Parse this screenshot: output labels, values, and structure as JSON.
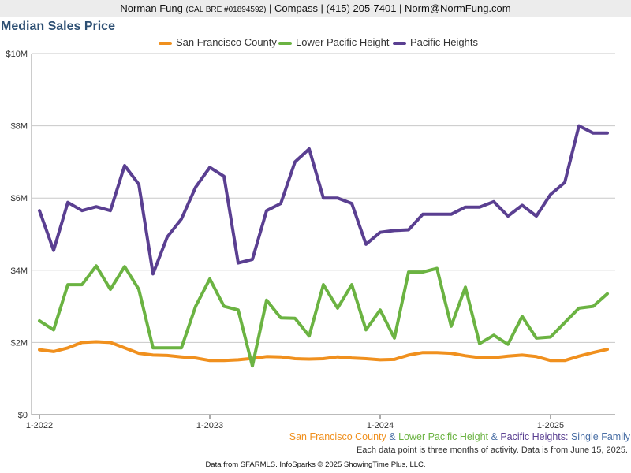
{
  "header": {
    "agent_name": "Norman Fung",
    "license": "(CAL BRE #01894592)",
    "rest": "| Compass | (415) 205-7401 | Norm@NormFung.com"
  },
  "colors": {
    "sf": "#f0901e",
    "lph": "#6bb342",
    "ph": "#5a3f91",
    "title": "#2d4f73",
    "subtitle_blue": "#4a6fa5"
  },
  "chart_data": {
    "type": "line",
    "title": "Median Sales Price",
    "xlabel": "",
    "ylabel": "",
    "ylim": [
      0,
      10000000
    ],
    "yticks": [
      "$0",
      "$2M",
      "$4M",
      "$6M",
      "$8M",
      "$10M"
    ],
    "ytick_values": [
      0,
      2000000,
      4000000,
      6000000,
      8000000,
      10000000
    ],
    "xticks": [
      "1-2022",
      "1-2023",
      "1-2024",
      "1-2025"
    ],
    "xtick_index": [
      0,
      12,
      24,
      36
    ],
    "grid": true,
    "legend_position": "top",
    "x": [
      "1-2022",
      "2-2022",
      "3-2022",
      "4-2022",
      "5-2022",
      "6-2022",
      "7-2022",
      "8-2022",
      "9-2022",
      "10-2022",
      "11-2022",
      "12-2022",
      "1-2023",
      "2-2023",
      "3-2023",
      "4-2023",
      "5-2023",
      "6-2023",
      "7-2023",
      "8-2023",
      "9-2023",
      "10-2023",
      "11-2023",
      "12-2023",
      "1-2024",
      "2-2024",
      "3-2024",
      "4-2024",
      "5-2024",
      "6-2024",
      "7-2024",
      "8-2024",
      "9-2024",
      "10-2024",
      "11-2024",
      "12-2024",
      "1-2025",
      "2-2025",
      "3-2025",
      "4-2025",
      "5-2025"
    ],
    "series": [
      {
        "name": "San Francisco County",
        "color": "#f0901e",
        "values": [
          1800000,
          1750000,
          1850000,
          2000000,
          2020000,
          2000000,
          1850000,
          1700000,
          1650000,
          1640000,
          1600000,
          1570000,
          1500000,
          1500000,
          1520000,
          1560000,
          1610000,
          1600000,
          1550000,
          1540000,
          1550000,
          1600000,
          1570000,
          1550000,
          1520000,
          1530000,
          1650000,
          1720000,
          1720000,
          1700000,
          1630000,
          1580000,
          1580000,
          1620000,
          1650000,
          1610000,
          1500000,
          1500000,
          1620000,
          1720000,
          1810000
        ]
      },
      {
        "name": "Lower Pacific Height",
        "color": "#6bb342",
        "values": [
          2600000,
          2350000,
          3600000,
          3600000,
          4120000,
          3470000,
          4100000,
          3470000,
          1850000,
          1850000,
          1850000,
          3000000,
          3760000,
          3000000,
          2900000,
          1350000,
          3170000,
          2680000,
          2670000,
          2180000,
          3600000,
          2950000,
          3600000,
          2350000,
          2900000,
          2120000,
          3950000,
          3950000,
          4050000,
          2450000,
          3530000,
          1970000,
          2200000,
          1950000,
          2720000,
          2120000,
          2150000,
          2550000,
          2950000,
          3000000,
          3350000
        ]
      },
      {
        "name": "Pacific Heights",
        "color": "#5a3f91",
        "values": [
          5650000,
          4550000,
          5880000,
          5650000,
          5760000,
          5650000,
          6900000,
          6380000,
          3900000,
          4920000,
          5420000,
          6300000,
          6850000,
          6600000,
          4200000,
          4300000,
          5650000,
          5850000,
          7000000,
          7360000,
          6000000,
          6000000,
          5850000,
          4720000,
          5050000,
          5100000,
          5120000,
          5550000,
          5550000,
          5550000,
          5750000,
          5750000,
          5900000,
          5500000,
          5800000,
          5500000,
          6100000,
          6430000,
          8000000,
          7800000,
          7800000
        ]
      }
    ]
  },
  "subtitle": {
    "sf": "San Francisco County",
    "amp1": "&",
    "lph": "Lower Pacific Height",
    "amp2": "&",
    "ph": "Pacific Heights:",
    "type": "Single Family"
  },
  "note": "Each data point is three months of activity. Data is from June 15, 2025.",
  "footer": "Data from SFARMLS. InfoSparks © 2025 ShowingTime Plus, LLC."
}
